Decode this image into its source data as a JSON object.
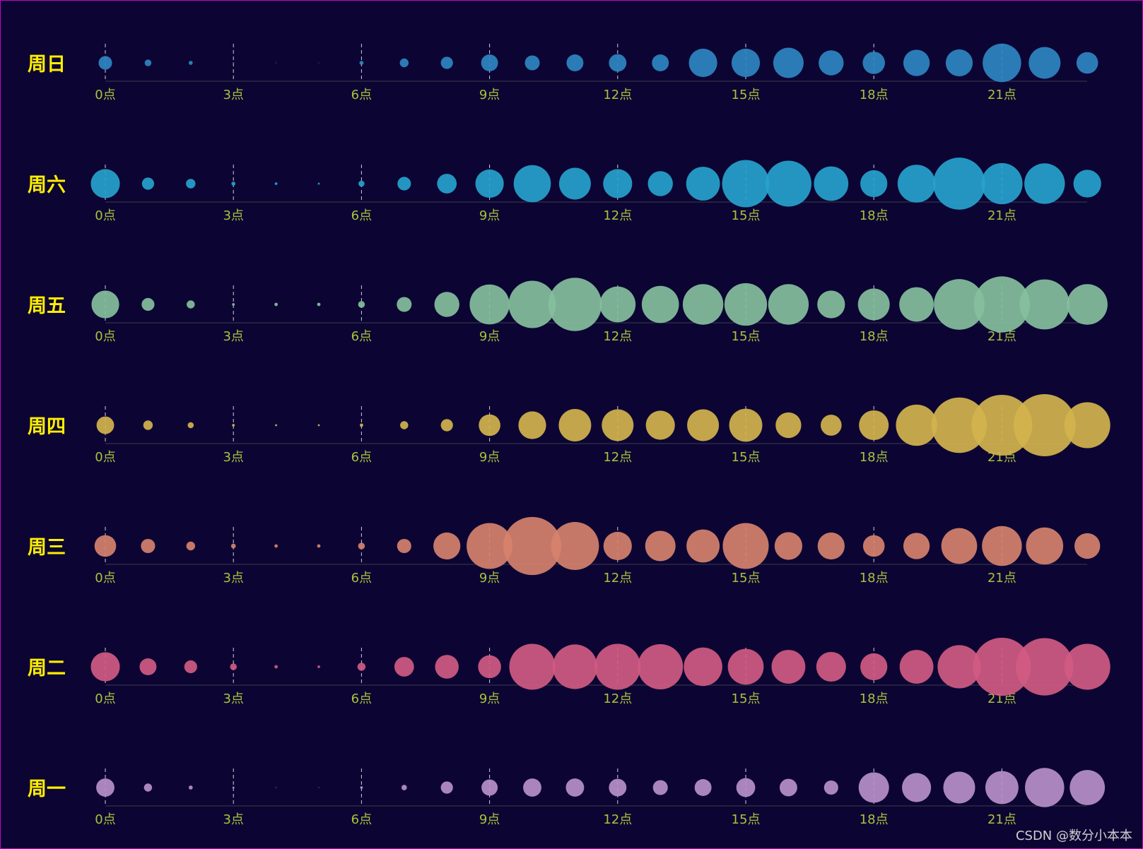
{
  "chart_data": {
    "type": "scatter",
    "x_categories": [
      "0点",
      "1点",
      "2点",
      "3点",
      "4点",
      "5点",
      "6点",
      "7点",
      "8点",
      "9点",
      "10点",
      "11点",
      "12点",
      "13点",
      "14点",
      "15点",
      "16点",
      "17点",
      "18点",
      "19点",
      "20点",
      "21点",
      "22点",
      "23点"
    ],
    "tick_step": 3,
    "grid": "vertical dashed at labeled ticks",
    "series": [
      {
        "name": "周日",
        "color": "#2f86c1",
        "values": [
          20,
          10,
          6,
          2,
          1,
          1,
          6,
          13,
          18,
          25,
          22,
          25,
          26,
          25,
          42,
          42,
          45,
          37,
          33,
          39,
          40,
          57,
          47,
          32
        ]
      },
      {
        "name": "周六",
        "color": "#27a2cc",
        "values": [
          43,
          18,
          14,
          6,
          4,
          3,
          9,
          20,
          29,
          42,
          55,
          47,
          43,
          37,
          50,
          70,
          68,
          51,
          40,
          56,
          77,
          61,
          60,
          41
        ]
      },
      {
        "name": "周五",
        "color": "#86bf9d",
        "values": [
          41,
          19,
          12,
          4,
          5,
          5,
          10,
          22,
          37,
          59,
          70,
          79,
          53,
          55,
          60,
          63,
          60,
          41,
          47,
          51,
          75,
          83,
          74,
          60
        ]
      },
      {
        "name": "周四",
        "color": "#d4b34d",
        "values": [
          26,
          14,
          9,
          4,
          3,
          3,
          5,
          12,
          18,
          32,
          41,
          48,
          47,
          43,
          47,
          49,
          38,
          31,
          44,
          61,
          82,
          90,
          92,
          68
        ]
      },
      {
        "name": "周三",
        "color": "#d6826c",
        "values": [
          32,
          21,
          13,
          7,
          5,
          5,
          10,
          21,
          40,
          68,
          86,
          71,
          42,
          45,
          49,
          68,
          41,
          40,
          32,
          39,
          53,
          59,
          55,
          38
        ]
      },
      {
        "name": "周二",
        "color": "#d15b82",
        "values": [
          43,
          25,
          19,
          10,
          5,
          4,
          12,
          29,
          35,
          34,
          68,
          66,
          68,
          67,
          57,
          53,
          50,
          44,
          40,
          50,
          64,
          86,
          85,
          68
        ]
      },
      {
        "name": "周一",
        "color": "#b990c9",
        "values": [
          27,
          12,
          6,
          3,
          1,
          1,
          4,
          8,
          18,
          24,
          27,
          27,
          26,
          22,
          25,
          28,
          26,
          21,
          45,
          43,
          47,
          49,
          58,
          52
        ]
      }
    ]
  },
  "watermark": "CSDN @数分小本本"
}
